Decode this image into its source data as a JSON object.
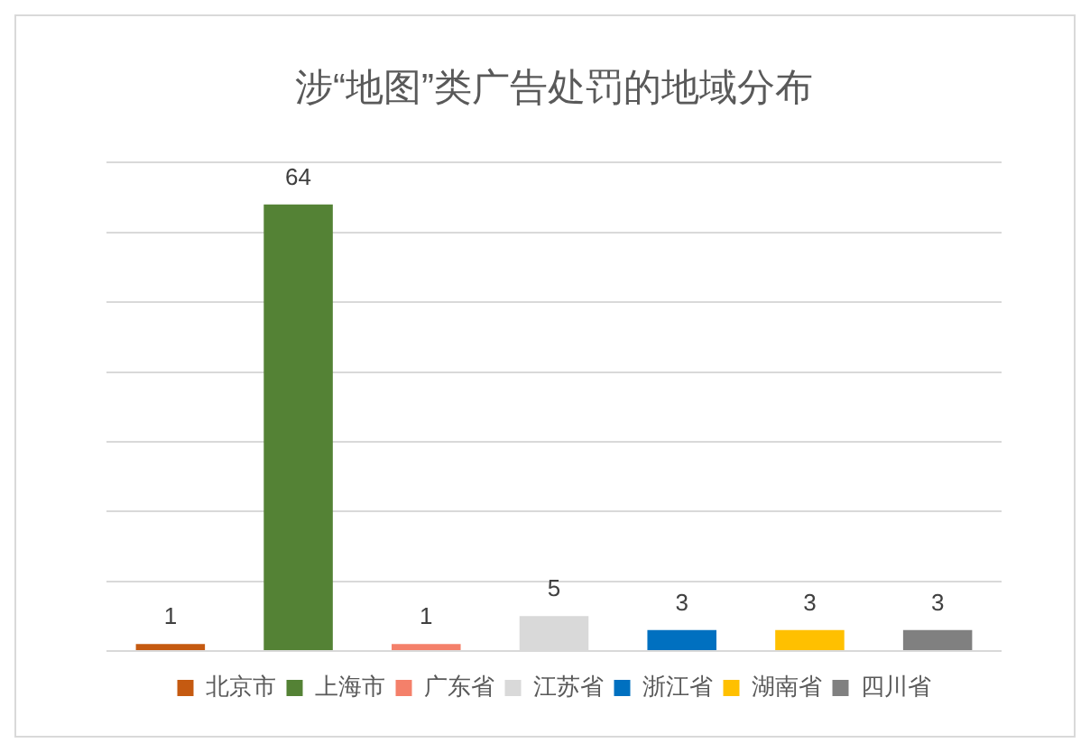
{
  "chart_data": {
    "type": "bar",
    "title": "涉“地图”类广告处罚的地域分布",
    "categories": [
      null,
      null,
      null,
      null,
      null,
      null,
      null
    ],
    "stacked": true,
    "series": [
      {
        "name": "北京市",
        "color": "#c55a11",
        "values": [
          1,
          null,
          null,
          null,
          null,
          null,
          null
        ]
      },
      {
        "name": "上海市",
        "color": "#548235",
        "values": [
          null,
          64,
          null,
          null,
          null,
          null,
          null
        ]
      },
      {
        "name": "广东省",
        "color": "#f4806a",
        "values": [
          null,
          null,
          1,
          null,
          null,
          null,
          null
        ]
      },
      {
        "name": "江苏省",
        "color": "#d9d9d9",
        "values": [
          null,
          null,
          null,
          5,
          null,
          null,
          null
        ]
      },
      {
        "name": "浙江省",
        "color": "#0070c0",
        "values": [
          null,
          null,
          null,
          null,
          3,
          null,
          null
        ]
      },
      {
        "name": "湖南省",
        "color": "#ffc000",
        "values": [
          null,
          null,
          null,
          null,
          null,
          3,
          null
        ]
      },
      {
        "name": "四川省",
        "color": "#808080",
        "values": [
          null,
          null,
          null,
          null,
          null,
          null,
          3
        ]
      }
    ],
    "grid": "y",
    "legend": "bottom",
    "data_labels": true
  }
}
